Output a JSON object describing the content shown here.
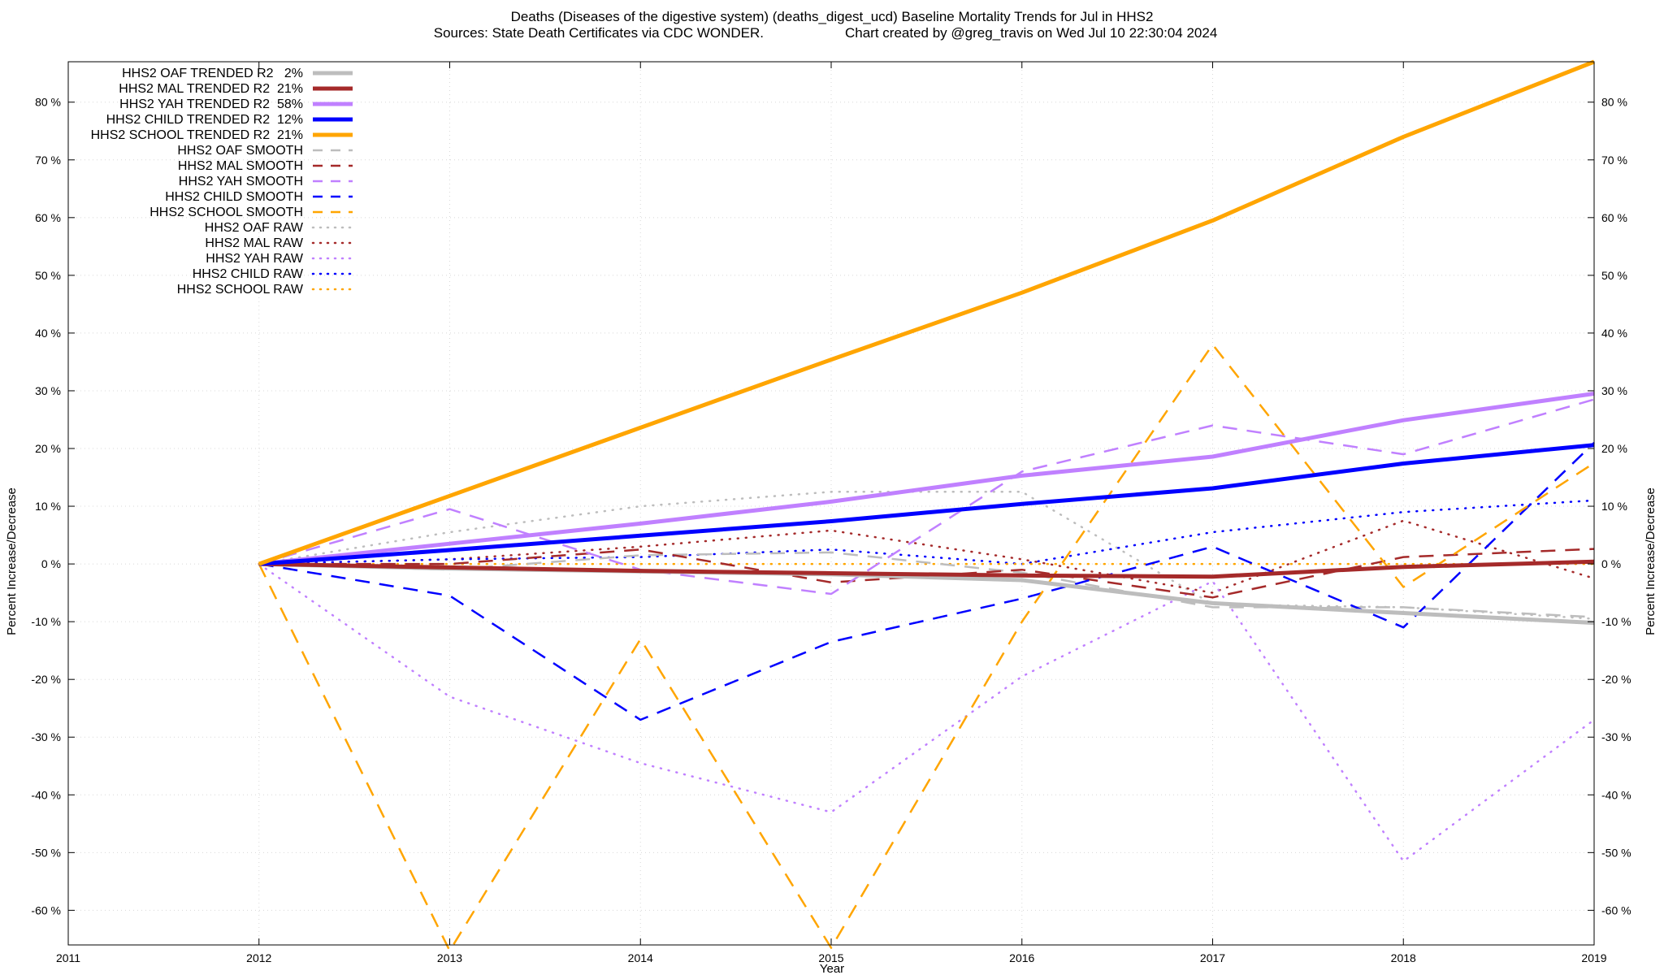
{
  "chart_data": {
    "type": "line",
    "title_line1": "Deaths (Diseases of the digestive system) (deaths_digest_ucd)  Baseline Mortality Trends for Jul in HHS2",
    "title_line2_left": "Sources: State Death Certificates via CDC WONDER.",
    "title_line2_right": "Chart created by @greg_travis on Wed Jul 10 22:30:04 2024",
    "xlabel": "Year",
    "ylabel_left": "Percent Increase/Decrease",
    "ylabel_right": "Percent Increase/Decrease",
    "xlim": [
      2011,
      2019
    ],
    "ylim": [
      -66,
      87
    ],
    "x_ticks": [
      2011,
      2012,
      2013,
      2014,
      2015,
      2016,
      2017,
      2018,
      2019
    ],
    "x_tick_labels": [
      "2011",
      "2012",
      "2013",
      "2014",
      "2015",
      "2016",
      "2017",
      "2018",
      "2019"
    ],
    "y_ticks": [
      -60,
      -50,
      -40,
      -30,
      -20,
      -10,
      0,
      10,
      20,
      30,
      40,
      50,
      60,
      70,
      80
    ],
    "y_tick_labels": [
      "-60 %",
      "-50 %",
      "-40 %",
      "-30 %",
      "-20 %",
      "-10 %",
      "0 %",
      "10 %",
      "20 %",
      "30 %",
      "40 %",
      "50 %",
      "60 %",
      "70 %",
      "80 %"
    ],
    "grid": true,
    "legend_position": "top-left",
    "series": [
      {
        "name": "HHS2 OAF TRENDED R2   2%",
        "style": "solid",
        "color": "#bdbdbd",
        "x": [
          2012,
          2013,
          2014,
          2015,
          2016,
          2017,
          2018,
          2019
        ],
        "y": [
          0,
          -0.8,
          -1.3,
          -1.8,
          -2.8,
          -6.8,
          -8.5,
          -10.2
        ]
      },
      {
        "name": "HHS2 MAL TRENDED R2  21%",
        "style": "solid",
        "color": "#a52a2a",
        "x": [
          2012,
          2013,
          2014,
          2015,
          2016,
          2017,
          2018,
          2019
        ],
        "y": [
          0,
          -0.6,
          -1.2,
          -1.6,
          -2.0,
          -2.2,
          -0.5,
          0.4
        ]
      },
      {
        "name": "HHS2 YAH TRENDED R2  58%",
        "style": "solid",
        "color": "#c080ff",
        "x": [
          2012,
          2013,
          2014,
          2015,
          2016,
          2017,
          2018,
          2019
        ],
        "y": [
          0,
          3.5,
          7.0,
          10.8,
          15.3,
          18.6,
          24.9,
          29.5
        ]
      },
      {
        "name": "HHS2 CHILD TRENDED R2  12%",
        "style": "solid",
        "color": "#0000ff",
        "x": [
          2012,
          2013,
          2014,
          2015,
          2016,
          2017,
          2018,
          2019
        ],
        "y": [
          0,
          2.4,
          4.9,
          7.4,
          10.4,
          13.1,
          17.4,
          20.6
        ]
      },
      {
        "name": "HHS2 SCHOOL TRENDED R2  21%",
        "style": "solid",
        "color": "#ffa500",
        "x": [
          2012,
          2013,
          2014,
          2015,
          2016,
          2017,
          2018,
          2019
        ],
        "y": [
          0,
          11.8,
          23.6,
          35.4,
          47.0,
          59.5,
          74.0,
          87.0
        ]
      },
      {
        "name": "HHS2 OAF SMOOTH",
        "style": "dashed",
        "color": "#bdbdbd",
        "x": [
          2012,
          2013,
          2014,
          2015,
          2016,
          2017,
          2018,
          2019
        ],
        "y": [
          0,
          -1.0,
          1.5,
          2.0,
          -1.5,
          -7.5,
          -7.5,
          -9.2
        ]
      },
      {
        "name": "HHS2 MAL SMOOTH",
        "style": "dashed",
        "color": "#a52a2a",
        "x": [
          2012,
          2013,
          2014,
          2015,
          2016,
          2017,
          2018,
          2019
        ],
        "y": [
          0,
          0,
          2.5,
          -3.2,
          -1.0,
          -5.8,
          1.2,
          2.6
        ]
      },
      {
        "name": "HHS2 YAH SMOOTH",
        "style": "dashed",
        "color": "#c080ff",
        "x": [
          2012,
          2013,
          2014,
          2015,
          2016,
          2017,
          2018,
          2019
        ],
        "y": [
          0,
          9.5,
          -1.0,
          -5.2,
          16.0,
          24.0,
          19.0,
          28.5
        ]
      },
      {
        "name": "HHS2 CHILD SMOOTH",
        "style": "dashed",
        "color": "#0000ff",
        "x": [
          2012,
          2013,
          2014,
          2015,
          2016,
          2017,
          2018,
          2019
        ],
        "y": [
          0,
          -5.5,
          -27.0,
          -13.5,
          -6.0,
          3.0,
          -11.0,
          21.0
        ]
      },
      {
        "name": "HHS2 SCHOOL SMOOTH",
        "style": "dashed",
        "color": "#ffa500",
        "x": [
          2012,
          2013,
          2014,
          2015,
          2016,
          2017,
          2018,
          2019
        ],
        "y": [
          0,
          -67.0,
          -13.0,
          -66.5,
          -10.0,
          38.0,
          -4.0,
          17.5
        ]
      },
      {
        "name": "HHS2 OAF RAW",
        "style": "dotted",
        "color": "#bdbdbd",
        "x": [
          2012,
          2013,
          2014,
          2015,
          2016,
          2017,
          2018,
          2019
        ],
        "y": [
          0,
          5.5,
          10.0,
          12.5,
          12.5,
          -7.0,
          -7.5,
          -9.5
        ]
      },
      {
        "name": "HHS2 MAL RAW",
        "style": "dotted",
        "color": "#a52a2a",
        "x": [
          2012,
          2013,
          2014,
          2015,
          2016,
          2017,
          2018,
          2019
        ],
        "y": [
          0,
          0.8,
          3.0,
          5.8,
          0.8,
          -5.0,
          7.5,
          -2.5
        ]
      },
      {
        "name": "HHS2 YAH RAW",
        "style": "dotted",
        "color": "#c080ff",
        "x": [
          2012,
          2013,
          2014,
          2015,
          2016,
          2017,
          2018,
          2019
        ],
        "y": [
          0,
          -23.0,
          -34.5,
          -43.0,
          -19.5,
          -3.0,
          -51.5,
          -27.0
        ]
      },
      {
        "name": "HHS2 CHILD RAW",
        "style": "dotted",
        "color": "#0000ff",
        "x": [
          2012,
          2013,
          2014,
          2015,
          2016,
          2017,
          2018,
          2019
        ],
        "y": [
          0,
          0.8,
          1.2,
          2.5,
          0.0,
          5.5,
          9.0,
          11.0
        ]
      },
      {
        "name": "HHS2 SCHOOL RAW",
        "style": "dotted",
        "color": "#ffa500",
        "x": [
          2012,
          2013,
          2014,
          2015,
          2016,
          2017,
          2018,
          2019
        ],
        "y": [
          0,
          0,
          0,
          0,
          0,
          0,
          0,
          0
        ]
      }
    ]
  }
}
